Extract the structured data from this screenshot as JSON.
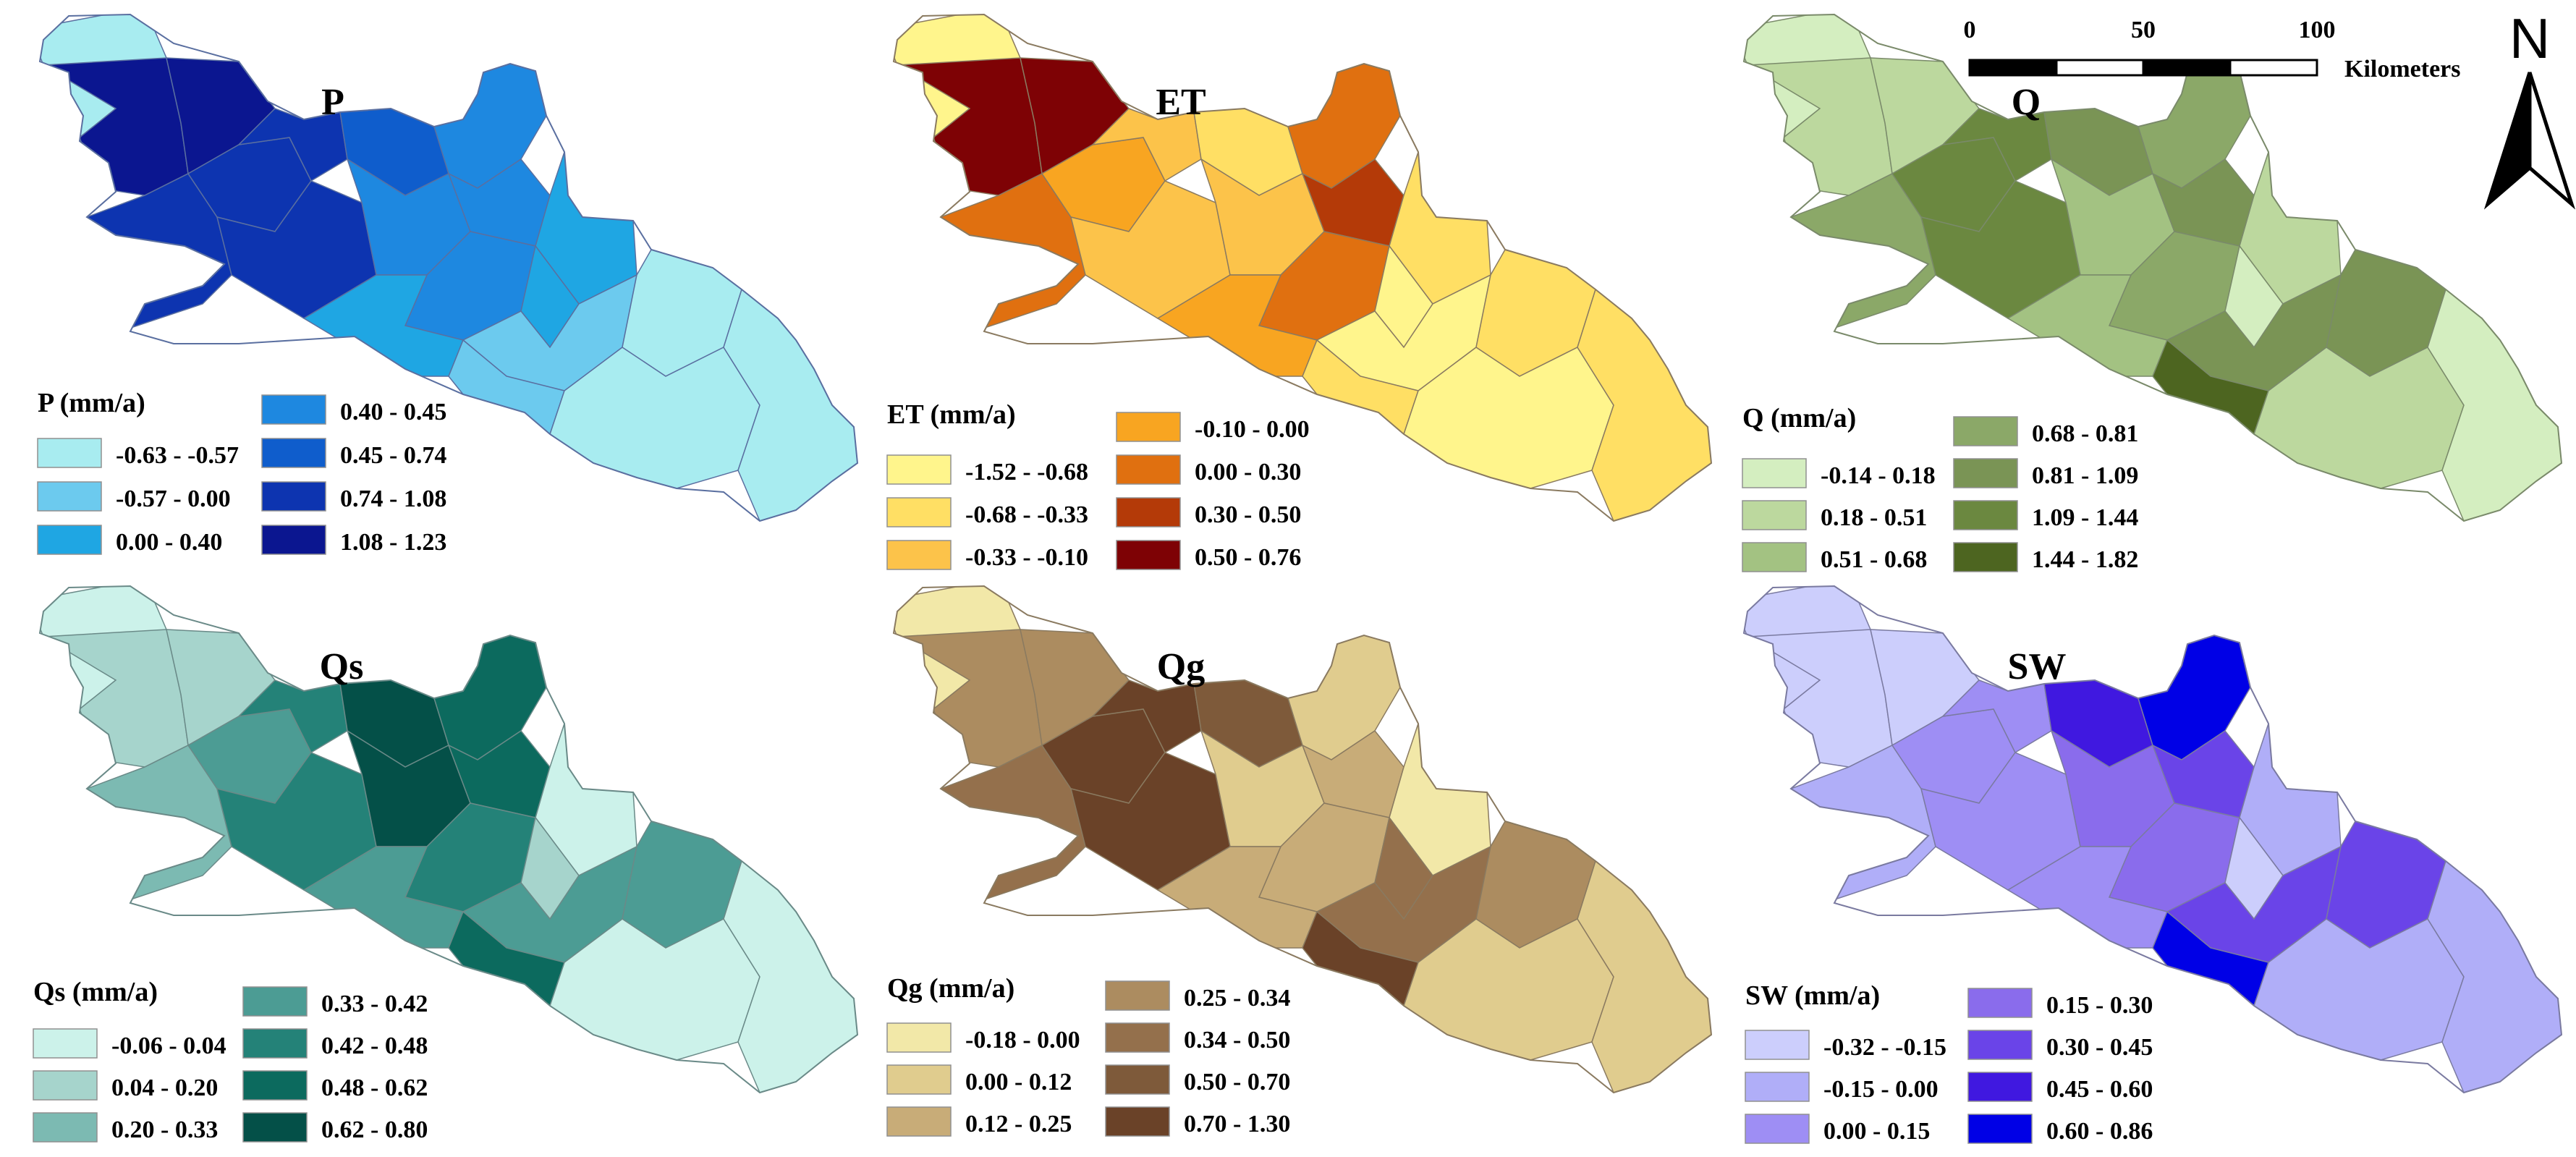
{
  "scale_bar": {
    "ticks": [
      "0",
      "50",
      "100"
    ],
    "unit": "Kilometers"
  },
  "north_arrow": {
    "label": "N",
    "icon": "north-arrow-icon"
  },
  "panels": [
    {
      "title": "P",
      "legend_title": "P (mm/a)",
      "outline": "#5a6fa0",
      "classes": [
        {
          "label": "-0.63 - -0.57",
          "color": "#a8ecf0"
        },
        {
          "label": "-0.57 - 0.00",
          "color": "#6ccaee"
        },
        {
          "label": "0.00 - 0.40",
          "color": "#1fa6e3"
        },
        {
          "label": "0.40 - 0.45",
          "color": "#1e88e0"
        },
        {
          "label": "0.45 - 0.74",
          "color": "#0f5dcc"
        },
        {
          "label": "0.74 - 1.08",
          "color": "#0d34b0"
        },
        {
          "label": "1.08 - 1.23",
          "color": "#0b1690"
        }
      ],
      "zones": [
        0,
        6,
        6,
        5,
        5,
        5,
        5,
        4,
        3,
        3,
        3,
        3,
        2,
        2,
        2,
        1,
        1,
        0,
        0,
        0
      ]
    },
    {
      "title": "ET",
      "legend_title": "ET (mm/a)",
      "outline": "#8a7a60",
      "classes": [
        {
          "label": "-1.52 - -0.68",
          "color": "#fff58c"
        },
        {
          "label": "-0.68 - -0.33",
          "color": "#ffdf64"
        },
        {
          "label": "-0.33 - -0.10",
          "color": "#fcc34a"
        },
        {
          "label": "-0.10 - 0.00",
          "color": "#f8a521"
        },
        {
          "label": "0.00 - 0.30",
          "color": "#e07010"
        },
        {
          "label": "0.30 - 0.50",
          "color": "#b43a08"
        },
        {
          "label": "0.50 - 0.76",
          "color": "#7e0205"
        }
      ],
      "zones": [
        0,
        6,
        6,
        4,
        3,
        2,
        2,
        1,
        2,
        4,
        5,
        4,
        3,
        1,
        0,
        0,
        1,
        1,
        0,
        1
      ]
    },
    {
      "title": "Q",
      "legend_title": "Q (mm/a)",
      "outline": "#7a8a6a",
      "classes": [
        {
          "label": "-0.14 - 0.18",
          "color": "#d4eec0"
        },
        {
          "label": "0.18 - 0.51",
          "color": "#bcd89e"
        },
        {
          "label": "0.51 - 0.68",
          "color": "#a3c282"
        },
        {
          "label": "0.68 - 0.81",
          "color": "#8ba868"
        },
        {
          "label": "0.81 - 1.09",
          "color": "#7a9455"
        },
        {
          "label": "1.09 - 1.44",
          "color": "#6b8840"
        },
        {
          "label": "1.44 - 1.82",
          "color": "#4d6520"
        }
      ],
      "zones": [
        0,
        1,
        1,
        3,
        5,
        5,
        5,
        4,
        2,
        3,
        4,
        3,
        2,
        1,
        0,
        4,
        6,
        4,
        1,
        0
      ]
    },
    {
      "title": "Qs",
      "legend_title": "Qs (mm/a)",
      "outline": "#6a8a88",
      "classes": [
        {
          "label": "-0.06 - 0.04",
          "color": "#ccf2ea"
        },
        {
          "label": "0.04 - 0.20",
          "color": "#a6d4cc"
        },
        {
          "label": "0.20 - 0.33",
          "color": "#7cbab2"
        },
        {
          "label": "0.33 - 0.42",
          "color": "#4c9c94"
        },
        {
          "label": "0.42 - 0.48",
          "color": "#248278"
        },
        {
          "label": "0.48 - 0.62",
          "color": "#0c6a5e"
        },
        {
          "label": "0.62 - 0.80",
          "color": "#045048"
        }
      ],
      "zones": [
        0,
        1,
        1,
        2,
        3,
        4,
        4,
        6,
        6,
        5,
        5,
        4,
        3,
        0,
        1,
        3,
        5,
        3,
        0,
        0
      ]
    },
    {
      "title": "Qg",
      "legend_title": "Qg (mm/a)",
      "outline": "#8a7a60",
      "classes": [
        {
          "label": "-0.18 - 0.00",
          "color": "#f2e8a8"
        },
        {
          "label": "0.00 - 0.12",
          "color": "#e0cc8e"
        },
        {
          "label": "0.12 - 0.25",
          "color": "#c8ac78"
        },
        {
          "label": "0.25 - 0.34",
          "color": "#ac8c60"
        },
        {
          "label": "0.34 - 0.50",
          "color": "#94704c"
        },
        {
          "label": "0.50 - 0.70",
          "color": "#7e5a3a"
        },
        {
          "label": "0.70 - 1.30",
          "color": "#6a4228"
        }
      ],
      "zones": [
        0,
        3,
        3,
        4,
        6,
        6,
        6,
        5,
        1,
        1,
        2,
        2,
        2,
        0,
        4,
        4,
        6,
        3,
        1,
        1
      ]
    },
    {
      "title": "SW",
      "legend_title": "SW (mm/a)",
      "outline": "#7a7aa0",
      "classes": [
        {
          "label": "-0.32 - -0.15",
          "color": "#cccefc"
        },
        {
          "label": "-0.15 - 0.00",
          "color": "#b0aef8"
        },
        {
          "label": "0.00 - 0.15",
          "color": "#9e8ef4"
        },
        {
          "label": "0.15 - 0.30",
          "color": "#8a6cec"
        },
        {
          "label": "0.30 - 0.45",
          "color": "#6a44e8"
        },
        {
          "label": "0.45 - 0.60",
          "color": "#4018e0"
        },
        {
          "label": "0.60 - 0.86",
          "color": "#0000e6"
        }
      ],
      "zones": [
        0,
        0,
        0,
        1,
        2,
        2,
        2,
        5,
        3,
        6,
        4,
        3,
        2,
        1,
        0,
        4,
        6,
        4,
        1,
        1
      ]
    }
  ]
}
